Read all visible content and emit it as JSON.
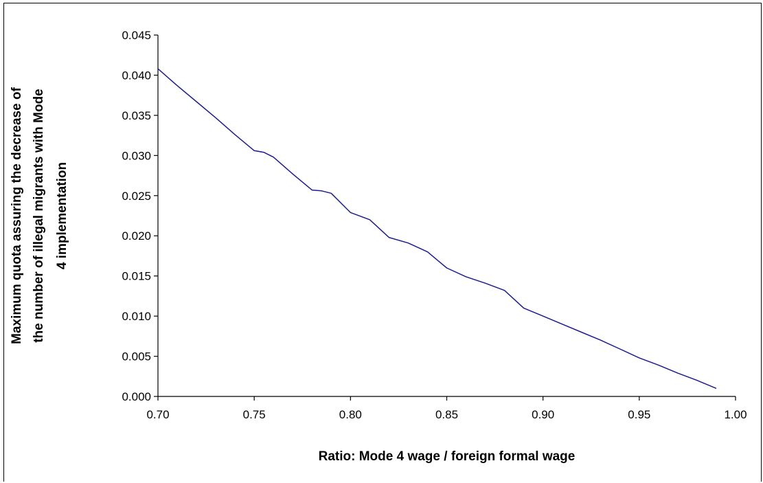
{
  "chart_data": {
    "type": "line",
    "title": "",
    "xlabel": "Ratio: Mode 4 wage / foreign formal wage",
    "ylabel_lines": [
      "Maximum quota assuring the decrease of",
      "the number of illegal migrants with Mode",
      "4 implementation"
    ],
    "xlim": [
      0.7,
      1.0
    ],
    "ylim": [
      0.0,
      0.045
    ],
    "x_ticks": [
      "0.70",
      "0.75",
      "0.80",
      "0.85",
      "0.90",
      "0.95",
      "1.00"
    ],
    "y_ticks": [
      "0.000",
      "0.005",
      "0.010",
      "0.015",
      "0.020",
      "0.025",
      "0.030",
      "0.035",
      "0.040",
      "0.045"
    ],
    "grid": false,
    "legend": "none",
    "series": [
      {
        "color": "#1c1c8c",
        "x": [
          0.7,
          0.71,
          0.72,
          0.73,
          0.74,
          0.75,
          0.755,
          0.76,
          0.77,
          0.78,
          0.785,
          0.79,
          0.8,
          0.81,
          0.82,
          0.83,
          0.84,
          0.85,
          0.86,
          0.87,
          0.88,
          0.89,
          0.9,
          0.91,
          0.92,
          0.93,
          0.94,
          0.95,
          0.96,
          0.97,
          0.98,
          0.99
        ],
        "y": [
          0.0408,
          0.0387,
          0.0367,
          0.0347,
          0.0326,
          0.0306,
          0.0304,
          0.0298,
          0.0277,
          0.0257,
          0.0256,
          0.0253,
          0.0229,
          0.022,
          0.0198,
          0.0191,
          0.018,
          0.016,
          0.0149,
          0.0141,
          0.0132,
          0.011,
          0.01,
          0.009,
          0.008,
          0.007,
          0.0059,
          0.0048,
          0.0039,
          0.0029,
          0.002,
          0.001
        ]
      }
    ]
  }
}
